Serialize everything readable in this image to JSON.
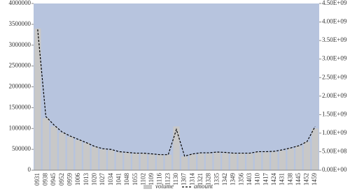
{
  "chart_data": {
    "type": "bar-line",
    "categories": [
      "0931",
      "0938",
      "0945",
      "0952",
      "0959",
      "1006",
      "1013",
      "1020",
      "1027",
      "1034",
      "1041",
      "1048",
      "1055",
      "1102",
      "1109",
      "1116",
      "1123",
      "1130",
      "1307",
      "1314",
      "1321",
      "1328",
      "1335",
      "1342",
      "1349",
      "1356",
      "1403",
      "1410",
      "1417",
      "1424",
      "1431",
      "1438",
      "1445",
      "1452",
      "1459"
    ],
    "series": [
      {
        "name": "volume",
        "type": "bar",
        "color": "#c8c8c8",
        "values": [
          3400000,
          1250000,
          1050000,
          900000,
          800000,
          720000,
          650000,
          560000,
          500000,
          480000,
          430000,
          420000,
          400000,
          400000,
          380000,
          370000,
          370000,
          1050000,
          330000,
          380000,
          400000,
          400000,
          420000,
          410000,
          400000,
          400000,
          400000,
          430000,
          430000,
          440000,
          470000,
          520000,
          580000,
          680000,
          1000000
        ]
      },
      {
        "name": "amount",
        "type": "line",
        "axis": "y2",
        "color": "#000000",
        "values": [
          3800000000,
          1450000000,
          1220000000,
          1030000000,
          920000000,
          830000000,
          740000000,
          640000000,
          580000000,
          560000000,
          500000000,
          480000000,
          460000000,
          460000000,
          440000000,
          420000000,
          420000000,
          1100000000,
          380000000,
          440000000,
          470000000,
          470000000,
          490000000,
          480000000,
          460000000,
          460000000,
          460000000,
          500000000,
          500000000,
          510000000,
          550000000,
          600000000,
          660000000,
          770000000,
          1180000000
        ]
      }
    ],
    "ylim": [
      0,
      4000000
    ],
    "yticks": [
      0,
      500000,
      1000000,
      1500000,
      2000000,
      2500000,
      3000000,
      3500000,
      4000000
    ],
    "y2lim": [
      0,
      4500000000
    ],
    "y2ticks": [
      {
        "value": 0,
        "label": "0.00E+00"
      },
      {
        "value": 500000000,
        "label": "5.00E+08"
      },
      {
        "value": 1000000000,
        "label": "1.00E+09"
      },
      {
        "value": 1500000000,
        "label": "1.50E+09"
      },
      {
        "value": 2000000000,
        "label": "2.00E+09"
      },
      {
        "value": 2500000000,
        "label": "2.50E+09"
      },
      {
        "value": 3000000000,
        "label": "3.00E+09"
      },
      {
        "value": 3500000000,
        "label": "3.50E+09"
      },
      {
        "value": 4000000000,
        "label": "4.00E+09"
      },
      {
        "value": 4500000000,
        "label": "4.50E+09"
      }
    ],
    "plot_background": "#b7c4de"
  }
}
